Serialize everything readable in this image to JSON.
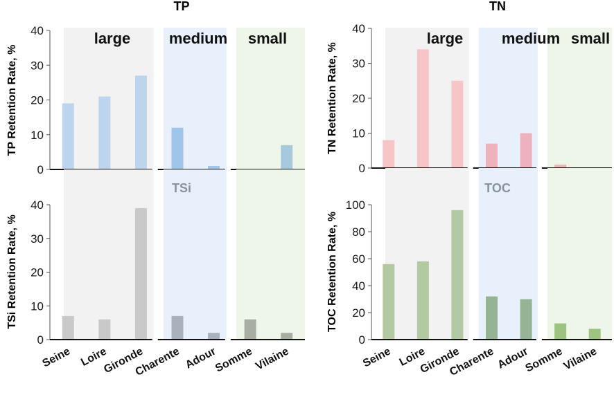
{
  "groups": [
    {
      "key": "large",
      "label": "large",
      "color": "#f2f2f2"
    },
    {
      "key": "medium",
      "label": "medium",
      "color": "#e8f0fb"
    },
    {
      "key": "small",
      "label": "small",
      "color": "#edf6e8"
    }
  ],
  "chart_data": [
    {
      "type": "bar",
      "title": "TP",
      "ylabel": "TP Retention Rate, %",
      "ylim": [
        0,
        40
      ],
      "yticks": [
        "0",
        "10",
        "20",
        "30",
        "40"
      ],
      "categories": [
        "Seine",
        "Loire",
        "Gironde",
        "Charente",
        "Adour",
        "Somme",
        "Vilaine"
      ],
      "values": [
        19,
        21,
        27,
        12,
        1,
        0,
        7
      ],
      "colors": [
        "#bcd5ec",
        "#bcd5ec",
        "#bcd5ec",
        "#9fc5e8",
        "#9fc5e8",
        "#a6cadb",
        "#a6cadb"
      ]
    },
    {
      "type": "bar",
      "title": "TN",
      "ylabel": "TN Retention Rate, %",
      "ylim": [
        0,
        40
      ],
      "yticks": [
        "0",
        "10",
        "20",
        "30",
        "40"
      ],
      "categories": [
        "Seine",
        "Loire",
        "Gironde",
        "Charente",
        "Adour",
        "Somme",
        "Vilaine"
      ],
      "values": [
        8,
        34,
        25,
        7,
        10,
        1,
        0
      ],
      "colors": [
        "#f7c5c8",
        "#f7c5c8",
        "#f7c5c8",
        "#edb2bb",
        "#edb2bb",
        "#e8b9b4",
        "#e8b9b4"
      ]
    },
    {
      "type": "bar",
      "title": "TSi",
      "ylabel": "TSi Retention Rate, %",
      "ylim": [
        0,
        40
      ],
      "yticks": [
        "0",
        "10",
        "20",
        "30",
        "40"
      ],
      "categories": [
        "Seine",
        "Loire",
        "Gironde",
        "Charente",
        "Adour",
        "Somme",
        "Vilaine"
      ],
      "values": [
        7,
        6,
        39,
        7,
        2,
        6,
        2
      ],
      "colors": [
        "#c9c9c9",
        "#c9c9c9",
        "#c9c9c9",
        "#a9b2bc",
        "#a9b2bc",
        "#a9aea4",
        "#a9aea4"
      ]
    },
    {
      "type": "bar",
      "title": "TOC",
      "ylabel": "TOC Retention Rate, %",
      "ylim": [
        0,
        100
      ],
      "yticks": [
        "0",
        "20",
        "40",
        "60",
        "80",
        "100"
      ],
      "categories": [
        "Seine",
        "Loire",
        "Gironde",
        "Charente",
        "Adour",
        "Somme",
        "Vilaine"
      ],
      "values": [
        56,
        58,
        96,
        32,
        30,
        12,
        8
      ],
      "colors": [
        "#b3c9a2",
        "#b3c9a2",
        "#b3c9a2",
        "#94b494",
        "#94b494",
        "#9dc381",
        "#9dc381"
      ]
    }
  ]
}
